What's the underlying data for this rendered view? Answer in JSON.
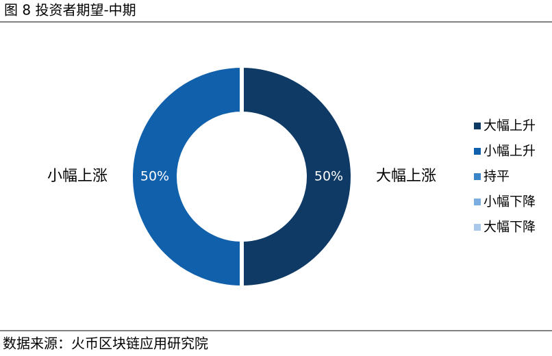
{
  "chart_data": {
    "type": "donut",
    "title": "图 8 投资者期望-中期",
    "categories": [
      "大幅上升",
      "小幅上升",
      "持平",
      "小幅下降",
      "大幅下降"
    ],
    "values": [
      50,
      50,
      0,
      0,
      0
    ],
    "value_labels": [
      "50%",
      "50%",
      null,
      null,
      null
    ],
    "slice_labels": [
      "大幅上涨",
      "小幅上涨",
      null,
      null,
      null
    ],
    "colors": [
      "#0f3a66",
      "#1160ab",
      "#3a85c8",
      "#7aaee0",
      "#a9c8ea"
    ],
    "legend": "right",
    "source": "数据来源：火币区块链应用研究院"
  }
}
